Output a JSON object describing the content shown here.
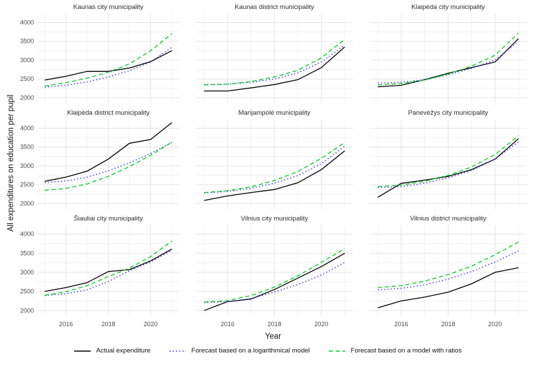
{
  "figure": {
    "ylabel": "All expenditures on education per pupil",
    "xlabel": "Year"
  },
  "axes": {
    "x_range": [
      2014.65,
      2021.35
    ],
    "y_range": [
      1860,
      4230
    ],
    "x_ticks": [
      2016,
      2018,
      2020
    ],
    "x_minor": [
      2015,
      2017,
      2019,
      2021
    ],
    "y_ticks": [
      2000,
      2500,
      3000,
      3500,
      4000
    ],
    "y_minor": [
      2250,
      2750,
      3250,
      3750
    ],
    "grid_major_color": "#e4e4e4",
    "grid_minor_color": "#f1f1f1"
  },
  "chart_data": {
    "type": "line",
    "x": [
      2015,
      2016,
      2017,
      2018,
      2019,
      2020,
      2021
    ],
    "series_meta": [
      {
        "key": "actual",
        "name": "Actual expenditure",
        "color": "#000000",
        "dash": "solid"
      },
      {
        "key": "log_model",
        "name": "Forecast based on a logarithmical model",
        "color": "#2222DD",
        "dash": "dotted"
      },
      {
        "key": "ratio_model",
        "name": "Forecast based on a model with ratios",
        "color": "#00CC22",
        "dash": "dashed"
      }
    ],
    "facets": [
      {
        "title": "Kaunas city municipality",
        "series": {
          "actual": [
            2470,
            2570,
            2700,
            2700,
            2790,
            2960,
            3250
          ],
          "log_model": [
            2280,
            2330,
            2420,
            2550,
            2720,
            2950,
            3340
          ],
          "ratio_model": [
            2310,
            2400,
            2520,
            2680,
            2900,
            3250,
            3700
          ]
        }
      },
      {
        "title": "Kaunas district municipality",
        "series": {
          "actual": [
            2180,
            2180,
            2260,
            2350,
            2480,
            2800,
            3350
          ],
          "log_model": [
            2350,
            2360,
            2410,
            2500,
            2660,
            2950,
            3400
          ],
          "ratio_model": [
            2340,
            2360,
            2430,
            2550,
            2730,
            3060,
            3550
          ]
        }
      },
      {
        "title": "Klaipėda city municipality",
        "series": {
          "actual": [
            2290,
            2330,
            2480,
            2650,
            2800,
            2950,
            3570
          ],
          "log_model": [
            2390,
            2410,
            2480,
            2610,
            2780,
            3000,
            3490
          ],
          "ratio_model": [
            2340,
            2380,
            2470,
            2630,
            2840,
            3130,
            3720
          ]
        }
      },
      {
        "title": "Klaipėda district municipality",
        "series": {
          "actual": [
            2590,
            2700,
            2860,
            3180,
            3600,
            3700,
            4150
          ],
          "log_model": [
            2550,
            2600,
            2700,
            2870,
            3080,
            3330,
            3620
          ],
          "ratio_model": [
            2350,
            2400,
            2520,
            2720,
            2980,
            3280,
            3630
          ]
        }
      },
      {
        "title": "Marijampolė municipality",
        "series": {
          "actual": [
            2080,
            2200,
            2290,
            2370,
            2550,
            2900,
            3400
          ],
          "log_model": [
            2280,
            2320,
            2400,
            2540,
            2740,
            3060,
            3520
          ],
          "ratio_model": [
            2290,
            2340,
            2440,
            2610,
            2850,
            3200,
            3620
          ]
        }
      },
      {
        "title": "Panevėžys city municipality",
        "series": {
          "actual": [
            2165,
            2535,
            2620,
            2720,
            2900,
            3180,
            3720
          ],
          "log_model": [
            2420,
            2450,
            2540,
            2680,
            2880,
            3180,
            3640
          ],
          "ratio_model": [
            2450,
            2490,
            2590,
            2750,
            2970,
            3300,
            3800
          ]
        }
      },
      {
        "title": "Šiauliai city municipality",
        "series": {
          "actual": [
            2500,
            2600,
            2730,
            3020,
            3070,
            3300,
            3610
          ],
          "log_model": [
            2390,
            2440,
            2540,
            2760,
            3040,
            3270,
            3580
          ],
          "ratio_model": [
            2400,
            2490,
            2650,
            2890,
            3110,
            3410,
            3820
          ]
        }
      },
      {
        "title": "Vilnius city municipality",
        "series": {
          "actual": [
            2000,
            2230,
            2300,
            2550,
            2850,
            3150,
            3500
          ],
          "log_model": [
            2210,
            2230,
            2310,
            2480,
            2680,
            2930,
            3260
          ],
          "ratio_model": [
            2220,
            2260,
            2390,
            2610,
            2910,
            3260,
            3620
          ]
        }
      },
      {
        "title": "Vilnius district municipality",
        "series": {
          "actual": [
            2070,
            2250,
            2350,
            2480,
            2700,
            3000,
            3120
          ],
          "log_model": [
            2540,
            2580,
            2670,
            2820,
            3020,
            3270,
            3560
          ],
          "ratio_model": [
            2600,
            2650,
            2770,
            2940,
            3160,
            3460,
            3790
          ]
        }
      }
    ]
  },
  "legend": {
    "items": [
      {
        "label": "Actual expenditure"
      },
      {
        "label": "Forecast based on a logarithmical model"
      },
      {
        "label": "Forecast based on a model with ratios"
      }
    ]
  }
}
